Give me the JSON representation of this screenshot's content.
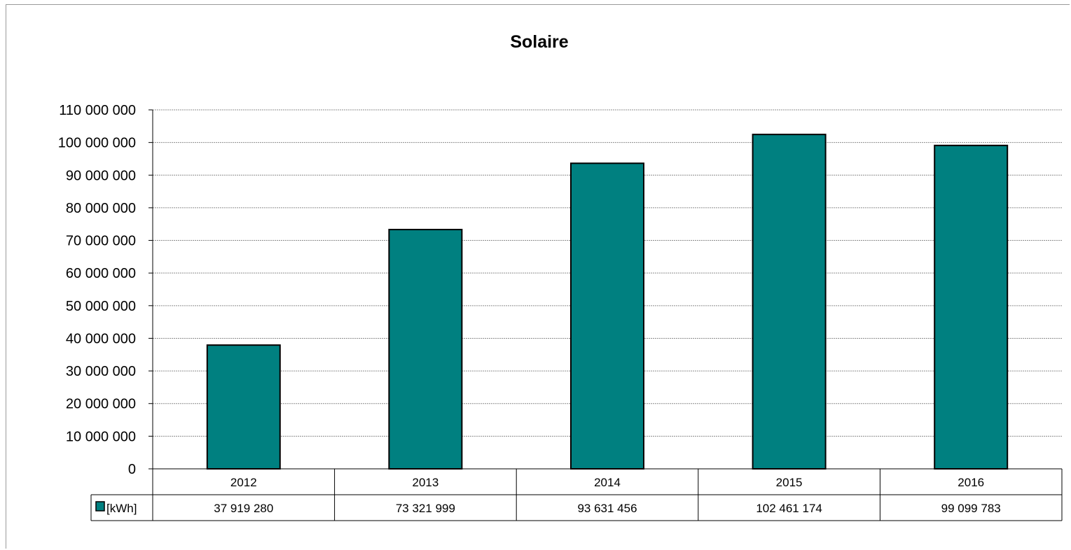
{
  "chart_data": {
    "type": "bar",
    "title": "Solaire",
    "categories": [
      "2012",
      "2013",
      "2014",
      "2015",
      "2016"
    ],
    "series": [
      {
        "name": "[kWh]",
        "color": "#008080",
        "values": [
          37919280,
          73321999,
          93631456,
          102461174,
          99099783
        ],
        "value_labels": [
          "37 919 280",
          "73 321 999",
          "93 631 456",
          "102 461 174",
          "99 099 783"
        ]
      }
    ],
    "ylim": [
      0,
      110000000
    ],
    "ystep": 10000000,
    "y_tick_labels": [
      "0",
      "10 000 000",
      "20 000 000",
      "30 000 000",
      "40 000 000",
      "50 000 000",
      "60 000 000",
      "70 000 000",
      "80 000 000",
      "90 000 000",
      "100 000 000",
      "110 000 000"
    ],
    "grid": true,
    "data_table": true,
    "xlabel": "",
    "ylabel": ""
  }
}
